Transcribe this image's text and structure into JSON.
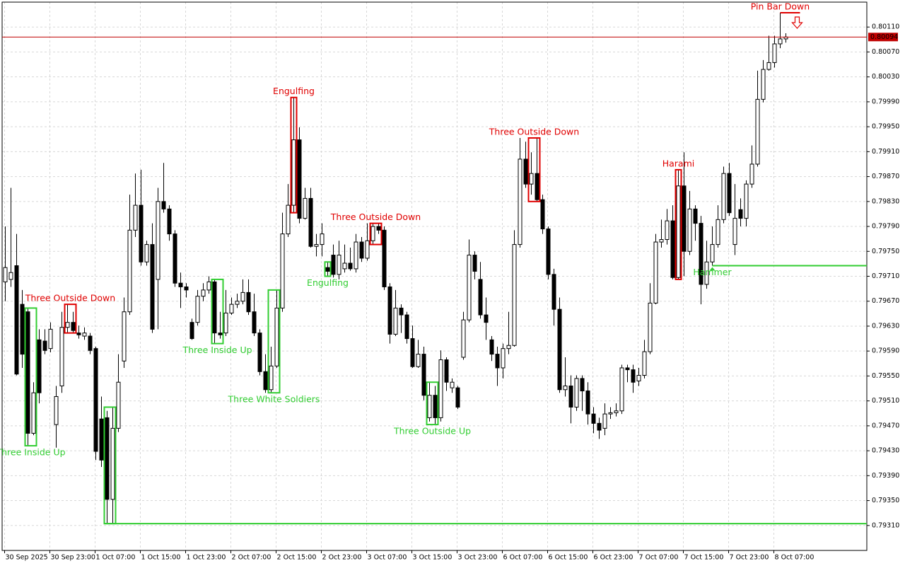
{
  "chart_data": {
    "type": "candlestick",
    "categories": [
      "30 Sep 2025",
      null,
      null,
      null,
      null,
      null,
      null,
      null,
      "30 Sep 23:00",
      null,
      null,
      null,
      null,
      null,
      null,
      null,
      "1 Oct 07:00",
      null,
      null,
      null,
      null,
      null,
      null,
      null,
      "1 Oct 15:00",
      null,
      null,
      null,
      null,
      null,
      null,
      null,
      "1 Oct 23:00",
      null,
      null,
      null,
      null,
      null,
      null,
      null,
      "2 Oct 07:00",
      null,
      null,
      null,
      null,
      null,
      null,
      null,
      "2 Oct 15:00",
      null,
      null,
      null,
      null,
      null,
      null,
      null,
      "2 Oct 23:00",
      null,
      null,
      null,
      null,
      null,
      null,
      null,
      "3 Oct 07:00",
      null,
      null,
      null,
      null,
      null,
      null,
      null,
      "3 Oct 15:00",
      null,
      null,
      null,
      null,
      null,
      null,
      null,
      "3 Oct 23:00",
      null,
      null,
      null,
      null,
      null,
      null,
      null,
      "6 Oct 07:00",
      null,
      null,
      null,
      null,
      null,
      null,
      null,
      "6 Oct 15:00",
      null,
      null,
      null,
      null,
      null,
      null,
      null,
      "6 Oct 23:00",
      null,
      null,
      null,
      null,
      null,
      null,
      null,
      "7 Oct 07:00",
      null,
      null,
      null,
      null,
      null,
      null,
      null,
      "7 Oct 15:00",
      null,
      null,
      null,
      null,
      null,
      null,
      null,
      "7 Oct 23:00",
      null,
      null,
      null,
      null,
      null,
      null,
      null,
      "8 Oct 07:00",
      null,
      null
    ],
    "open": [
      0.79701,
      0.79705,
      0.79727,
      0.79665,
      0.79653,
      0.79458,
      0.79608,
      0.79606,
      0.79594,
      0.79472,
      0.79534,
      0.79628,
      0.79636,
      0.79619,
      0.79614,
      0.79614,
      0.79594,
      0.79481,
      0.79483,
      0.79352,
      0.79466,
      0.79574,
      0.79653,
      0.79784,
      0.79824,
      0.79733,
      0.79761,
      0.79705,
      0.7983,
      0.79818,
      0.79778,
      0.79699,
      0.79693,
      0.79636,
      0.79636,
      0.79678,
      0.79688,
      0.79701,
      0.79619,
      0.79619,
      0.79651,
      0.79665,
      0.7967,
      0.79684,
      0.79653,
      0.79619,
      0.79557,
      0.79528,
      0.79566,
      0.79659,
      0.79778,
      0.79824,
      0.79929,
      0.79803,
      0.79835,
      0.79758,
      0.79761,
      0.79724,
      0.79744,
      0.79713,
      0.79722,
      0.79731,
      0.79722,
      0.79765,
      0.79739,
      0.79767,
      0.7979,
      0.79784,
      0.79693,
      0.79617,
      0.79659,
      0.79648,
      0.7961,
      0.79565,
      0.79585,
      0.79483,
      0.79519,
      0.79483,
      0.79576,
      0.79531,
      0.79531,
      0.7958,
      0.7964,
      0.79744,
      0.79705,
      0.79648,
      0.79608,
      0.79585,
      0.79563,
      0.79594,
      0.79599,
      0.79761,
      0.79898,
      0.79858,
      0.79875,
      0.79833,
      0.79786,
      0.79713,
      0.79657,
      0.79528,
      0.79534,
      0.795,
      0.79546,
      0.79526,
      0.79489,
      0.79474,
      0.79466,
      0.79489,
      0.79491,
      0.79494,
      0.79563,
      0.7956,
      0.79542,
      0.79551,
      0.79589,
      0.79667,
      0.79765,
      0.79769,
      0.79799,
      0.79708,
      0.79855,
      0.7975,
      0.79818,
      0.79795,
      0.79697,
      0.79733,
      0.79761,
      0.79801,
      0.79875,
      0.79761,
      0.79817,
      0.79803,
      0.79858,
      0.7989,
      0.79994,
      0.80042,
      0.80053,
      0.80083,
      0.80091
    ],
    "high": [
      0.7979,
      0.79852,
      0.79778,
      0.79688,
      0.79659,
      0.7954,
      0.79625,
      0.79625,
      0.79636,
      0.79534,
      0.79653,
      0.79665,
      0.79653,
      0.79631,
      0.79628,
      0.79619,
      0.79597,
      0.79517,
      0.79494,
      0.795,
      0.79585,
      0.79676,
      0.79841,
      0.79875,
      0.79881,
      0.79767,
      0.79795,
      0.79852,
      0.79892,
      0.79824,
      0.79784,
      0.79716,
      0.79699,
      0.79642,
      0.79688,
      0.79699,
      0.7971,
      0.79705,
      0.79653,
      0.79688,
      0.79676,
      0.79682,
      0.79705,
      0.79705,
      0.79682,
      0.79625,
      0.79585,
      0.79597,
      0.79688,
      0.79812,
      0.79858,
      0.79997,
      0.79949,
      0.79852,
      0.79852,
      0.79778,
      0.79795,
      0.79733,
      0.79761,
      0.79767,
      0.79761,
      0.79756,
      0.79778,
      0.79773,
      0.79795,
      0.79795,
      0.79795,
      0.7979,
      0.79699,
      0.79688,
      0.79665,
      0.79653,
      0.79631,
      0.79608,
      0.79597,
      0.7954,
      0.79534,
      0.79591,
      0.7958,
      0.79546,
      0.79534,
      0.79653,
      0.79769,
      0.7975,
      0.79733,
      0.79676,
      0.79614,
      0.79597,
      0.79602,
      0.79653,
      0.79784,
      0.79932,
      0.79926,
      0.79909,
      0.79932,
      0.79841,
      0.7979,
      0.79722,
      0.79676,
      0.7958,
      0.79551,
      0.79551,
      0.79551,
      0.7954,
      0.795,
      0.79483,
      0.79506,
      0.795,
      0.79506,
      0.79568,
      0.79568,
      0.79568,
      0.79563,
      0.79608,
      0.79699,
      0.79778,
      0.79801,
      0.79818,
      0.79824,
      0.79881,
      0.79909,
      0.79847,
      0.79824,
      0.79807,
      0.79767,
      0.7979,
      0.79824,
      0.79886,
      0.79892,
      0.79858,
      0.79835,
      0.79864,
      0.7992,
      0.8004,
      0.80057,
      0.80096,
      0.80096,
      0.80133,
      0.801
    ],
    "low": [
      0.7967,
      0.79693,
      0.79551,
      0.79563,
      0.79438,
      0.79455,
      0.79506,
      0.79585,
      0.79588,
      0.79435,
      0.79523,
      0.79619,
      0.79619,
      0.7961,
      0.79608,
      0.79585,
      0.79415,
      0.79404,
      0.79313,
      0.79313,
      0.7946,
      0.79563,
      0.79648,
      0.79773,
      0.79727,
      0.79727,
      0.79619,
      0.79625,
      0.79812,
      0.79767,
      0.79693,
      0.79659,
      0.79676,
      0.79608,
      0.79631,
      0.7967,
      0.79682,
      0.79602,
      0.7961,
      0.79614,
      0.79648,
      0.79659,
      0.79665,
      0.79648,
      0.79614,
      0.79551,
      0.79523,
      0.79523,
      0.79563,
      0.79653,
      0.79773,
      0.79812,
      0.79795,
      0.79801,
      0.79756,
      0.79742,
      0.79742,
      0.7971,
      0.79708,
      0.79705,
      0.79716,
      0.79719,
      0.79716,
      0.79733,
      0.79735,
      0.79761,
      0.79778,
      0.79688,
      0.79602,
      0.79614,
      0.79619,
      0.79602,
      0.79563,
      0.79563,
      0.79511,
      0.79477,
      0.79472,
      0.79477,
      0.79526,
      0.79523,
      0.79497,
      0.79576,
      0.79636,
      0.79705,
      0.79642,
      0.79608,
      0.79574,
      0.79534,
      0.79546,
      0.79585,
      0.79597,
      0.79756,
      0.79852,
      0.79841,
      0.7983,
      0.79778,
      0.79705,
      0.79631,
      0.79523,
      0.79517,
      0.79474,
      0.79494,
      0.79494,
      0.79472,
      0.79458,
      0.79449,
      0.79455,
      0.79481,
      0.79485,
      0.79489,
      0.7954,
      0.79523,
      0.79534,
      0.79546,
      0.79585,
      0.79665,
      0.79756,
      0.79761,
      0.79705,
      0.79705,
      0.7971,
      0.79744,
      0.79767,
      0.79665,
      0.7969,
      0.79727,
      0.79756,
      0.79795,
      0.79807,
      0.79744,
      0.7979,
      0.7979,
      0.79852,
      0.79886,
      0.79989,
      0.8004,
      0.80045,
      0.80076,
      0.80085
    ],
    "close": [
      0.79724,
      0.79716,
      0.79553,
      0.79585,
      0.79458,
      0.79523,
      0.79523,
      0.79591,
      0.79625,
      0.79517,
      0.79628,
      0.79636,
      0.79623,
      0.79616,
      0.79619,
      0.79591,
      0.79429,
      0.79415,
      0.79352,
      0.79466,
      0.7954,
      0.79653,
      0.79784,
      0.79824,
      0.79733,
      0.79761,
      0.79625,
      0.7983,
      0.79818,
      0.79778,
      0.79699,
      0.79693,
      0.79688,
      0.7961,
      0.79678,
      0.79688,
      0.79701,
      0.79619,
      0.79616,
      0.79651,
      0.79665,
      0.7967,
      0.79684,
      0.79653,
      0.79619,
      0.79557,
      0.79528,
      0.79566,
      0.79659,
      0.79778,
      0.79824,
      0.79929,
      0.79803,
      0.79835,
      0.79758,
      0.79761,
      0.79778,
      0.79718,
      0.79713,
      0.79744,
      0.79731,
      0.79722,
      0.79765,
      0.79739,
      0.79767,
      0.7979,
      0.79784,
      0.79693,
      0.79617,
      0.79659,
      0.79648,
      0.7961,
      0.79565,
      0.79585,
      0.79519,
      0.79519,
      0.79483,
      0.79576,
      0.7954,
      0.7954,
      0.795,
      0.7964,
      0.79744,
      0.79718,
      0.79648,
      0.79636,
      0.79585,
      0.79563,
      0.79594,
      0.79599,
      0.79761,
      0.79898,
      0.79858,
      0.79875,
      0.79833,
      0.79786,
      0.79713,
      0.79657,
      0.79528,
      0.79534,
      0.795,
      0.79546,
      0.79526,
      0.79489,
      0.79474,
      0.79463,
      0.79489,
      0.79491,
      0.79494,
      0.79563,
      0.7956,
      0.7954,
      0.79551,
      0.79589,
      0.79667,
      0.79765,
      0.79769,
      0.79799,
      0.79708,
      0.79855,
      0.7975,
      0.79818,
      0.79795,
      0.79697,
      0.79733,
      0.79761,
      0.79801,
      0.79875,
      0.79812,
      0.79803,
      0.79803,
      0.79858,
      0.7989,
      0.79994,
      0.80042,
      0.80053,
      0.80083,
      0.80091,
      0.80094
    ],
    "up_color": "#ffffff",
    "down_color": "#000000",
    "ylim": [
      0.7927,
      0.8015
    ],
    "yticks": [
      {
        "value": 0.8011,
        "label": "0.80110"
      },
      {
        "value": 0.8007,
        "label": "0.80070"
      },
      {
        "value": 0.8003,
        "label": "0.80030"
      },
      {
        "value": 0.7999,
        "label": "0.79990"
      },
      {
        "value": 0.7995,
        "label": "0.79950"
      },
      {
        "value": 0.7991,
        "label": "0.79910"
      },
      {
        "value": 0.7987,
        "label": "0.79870"
      },
      {
        "value": 0.7983,
        "label": "0.79830"
      },
      {
        "value": 0.7979,
        "label": "0.79790"
      },
      {
        "value": 0.7975,
        "label": "0.79750"
      },
      {
        "value": 0.7971,
        "label": "0.79710"
      },
      {
        "value": 0.7967,
        "label": "0.79670"
      },
      {
        "value": 0.7963,
        "label": "0.79630"
      },
      {
        "value": 0.7959,
        "label": "0.79590"
      },
      {
        "value": 0.7955,
        "label": "0.79550"
      },
      {
        "value": 0.7951,
        "label": "0.79510"
      },
      {
        "value": 0.7947,
        "label": "0.79470"
      },
      {
        "value": 0.7943,
        "label": "0.79430"
      },
      {
        "value": 0.7939,
        "label": "0.79390"
      },
      {
        "value": 0.7935,
        "label": "0.79350"
      },
      {
        "value": 0.7931,
        "label": "0.79310"
      }
    ],
    "grid": true,
    "last_price": 0.80094,
    "last_price_color": "#c00000",
    "patterns": [
      {
        "label": "Three Inside Up",
        "color": "#32cd32",
        "start": 4,
        "end": 5,
        "position": "below",
        "marker": "box"
      },
      {
        "label": "Three Outside Down",
        "color": "#e00000",
        "start": 11,
        "end": 12,
        "position": "above",
        "marker": "box"
      },
      {
        "color": "#32cd32",
        "start": 18,
        "end": 19,
        "position": "below",
        "marker": "box"
      },
      {
        "label": "Three Inside Up",
        "color": "#32cd32",
        "start": 37,
        "end": 38,
        "position": "below",
        "marker": "box"
      },
      {
        "label": "Three White Soldiers",
        "color": "#32cd32",
        "start": 47,
        "end": 48,
        "position": "below",
        "marker": "box"
      },
      {
        "label": "Engulfing",
        "color": "#e00000",
        "start": 51,
        "end": 51,
        "position": "above",
        "marker": "box"
      },
      {
        "label": "Engulfing",
        "color": "#32cd32",
        "start": 57,
        "end": 57,
        "position": "below",
        "marker": "box"
      },
      {
        "label": "Three Outside Down",
        "color": "#e00000",
        "start": 65,
        "end": 66,
        "position": "above",
        "marker": "box"
      },
      {
        "label": "Three Outside Up",
        "color": "#32cd32",
        "start": 75,
        "end": 76,
        "position": "below",
        "marker": "box"
      },
      {
        "label": "Three Outside Down",
        "color": "#e00000",
        "start": 93,
        "end": 94,
        "position": "above",
        "marker": "box"
      },
      {
        "label": "Harami",
        "color": "#e00000",
        "start": 119,
        "end": 119,
        "position": "above",
        "marker": "box"
      },
      {
        "label": "Hammer",
        "color": "#32cd32",
        "start": 125,
        "end": 125,
        "position": "below",
        "marker": "arrow-up"
      },
      {
        "label": "Pin Bar Down",
        "color": "#e00000",
        "start": 137,
        "end": 137,
        "position": "above",
        "marker": "arrow-down"
      }
    ]
  }
}
